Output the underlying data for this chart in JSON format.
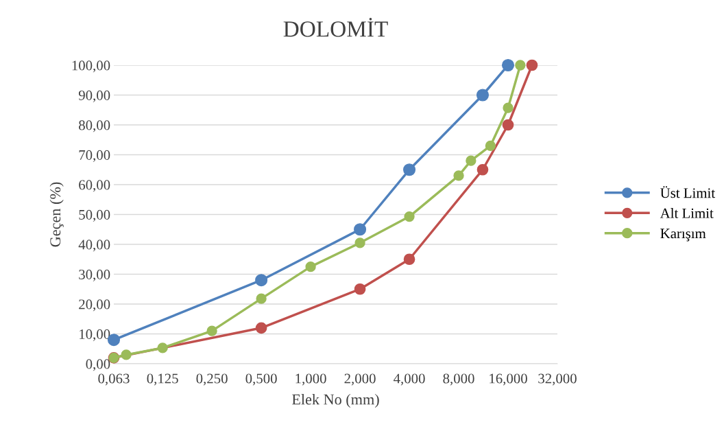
{
  "chart_data": {
    "type": "line",
    "title": "DOLOMİT",
    "xlabel": "Elek No (mm)",
    "ylabel": "Geçen (%)",
    "log": "x",
    "xlim": [
      0.063,
      32
    ],
    "xticks": [
      {
        "value": 0.063,
        "label": "0,063"
      },
      {
        "value": 0.125,
        "label": "0,125"
      },
      {
        "value": 0.25,
        "label": "0,250"
      },
      {
        "value": 0.5,
        "label": "0,500"
      },
      {
        "value": 1,
        "label": "1,000"
      },
      {
        "value": 2,
        "label": "2,000"
      },
      {
        "value": 4,
        "label": "4,000"
      },
      {
        "value": 8,
        "label": "8,000"
      },
      {
        "value": 16,
        "label": "16,000"
      },
      {
        "value": 32,
        "label": "32,000"
      }
    ],
    "ylim": [
      0,
      100
    ],
    "yticks": [
      {
        "value": 0,
        "label": "0,00"
      },
      {
        "value": 10,
        "label": "10,00"
      },
      {
        "value": 20,
        "label": "20,00"
      },
      {
        "value": 30,
        "label": "30,00"
      },
      {
        "value": 40,
        "label": "40,00"
      },
      {
        "value": 50,
        "label": "50,00"
      },
      {
        "value": 60,
        "label": "60,00"
      },
      {
        "value": 70,
        "label": "70,00"
      },
      {
        "value": 80,
        "label": "80,00"
      },
      {
        "value": 90,
        "label": "90,00"
      },
      {
        "value": 100,
        "label": "100,00"
      }
    ],
    "grid": "y",
    "legend": "right",
    "marker": "circle",
    "line_style": "solid",
    "series": [
      {
        "name": "Üst Limit",
        "color": "#4f81bd",
        "x": [
          0.063,
          0.5,
          2,
          4,
          11.2,
          16
        ],
        "values": [
          8,
          28,
          45,
          65,
          90,
          100
        ]
      },
      {
        "name": "Alt Limit",
        "color": "#c0504d",
        "x": [
          0.063,
          0.5,
          2,
          4,
          11.2,
          16,
          22.4
        ],
        "values": [
          2,
          12,
          25,
          35,
          65,
          80,
          100
        ]
      },
      {
        "name": "Karışım",
        "color": "#9bbb59",
        "x": [
          0.063,
          0.075,
          0.125,
          0.25,
          0.5,
          1,
          2,
          4,
          8,
          9.5,
          12.5,
          16,
          19
        ],
        "values": [
          2,
          3,
          5.3,
          11,
          21.8,
          32.5,
          40.5,
          49.3,
          63,
          68,
          73,
          85.7,
          100
        ]
      }
    ]
  }
}
